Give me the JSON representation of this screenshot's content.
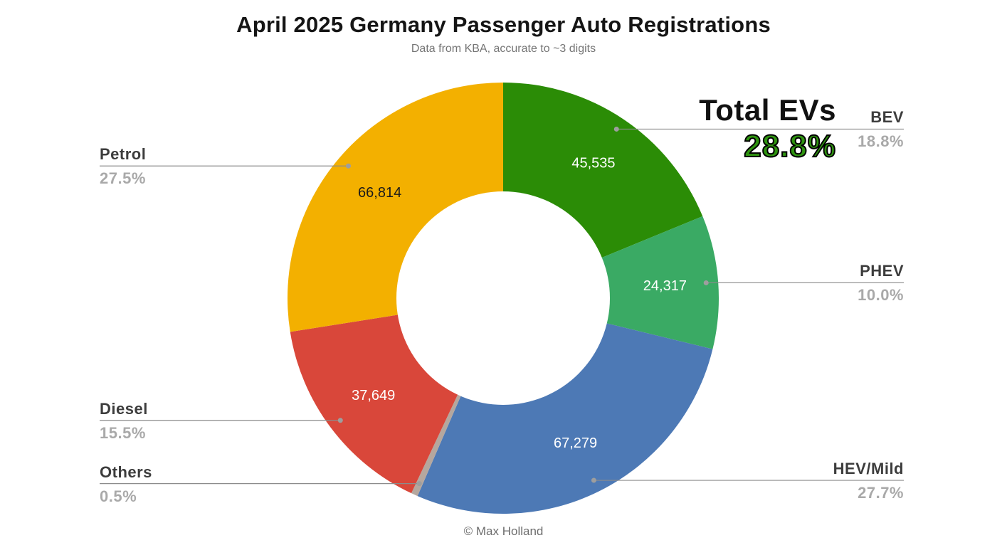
{
  "chart_data": {
    "type": "pie",
    "donut": true,
    "title": "April 2025 Germany Passenger Auto Registrations",
    "subtitle": "Data from KBA, accurate to ~3 digits",
    "credit": "© Max Holland",
    "start_angle_deg": 0,
    "direction": "clockwise",
    "slices": [
      {
        "label": "BEV",
        "pct": 18.8,
        "pct_label": "18.8%",
        "value": 45535,
        "value_label": "45,535",
        "color": "#2b8c06",
        "value_text_color": "#ffffff"
      },
      {
        "label": "PHEV",
        "pct": 10.0,
        "pct_label": "10.0%",
        "value": 24317,
        "value_label": "24,317",
        "color": "#3aaa64",
        "value_text_color": "#ffffff"
      },
      {
        "label": "HEV/Mild",
        "pct": 27.7,
        "pct_label": "27.7%",
        "value": 67279,
        "value_label": "67,279",
        "color": "#4d79b5",
        "value_text_color": "#ffffff"
      },
      {
        "label": "Others",
        "pct": 0.5,
        "pct_label": "0.5%",
        "value": null,
        "value_label": "",
        "color": "#b5a79e",
        "value_text_color": "#ffffff"
      },
      {
        "label": "Diesel",
        "pct": 15.5,
        "pct_label": "15.5%",
        "value": 37649,
        "value_label": "37,649",
        "color": "#d9473a",
        "value_text_color": "#ffffff"
      },
      {
        "label": "Petrol",
        "pct": 27.5,
        "pct_label": "27.5%",
        "value": 66814,
        "value_label": "66,814",
        "color": "#f3b000",
        "value_text_color": "#1a1a1a"
      }
    ],
    "annotation": {
      "label": "Total EVs",
      "value": "28.8%",
      "color": "#2f9410"
    },
    "colors": {
      "leader_line": "#8c8c8c",
      "leader_dot": "#9e9e9e",
      "label_name": "#3d3d3d",
      "label_pct": "#a9a9a9"
    }
  }
}
